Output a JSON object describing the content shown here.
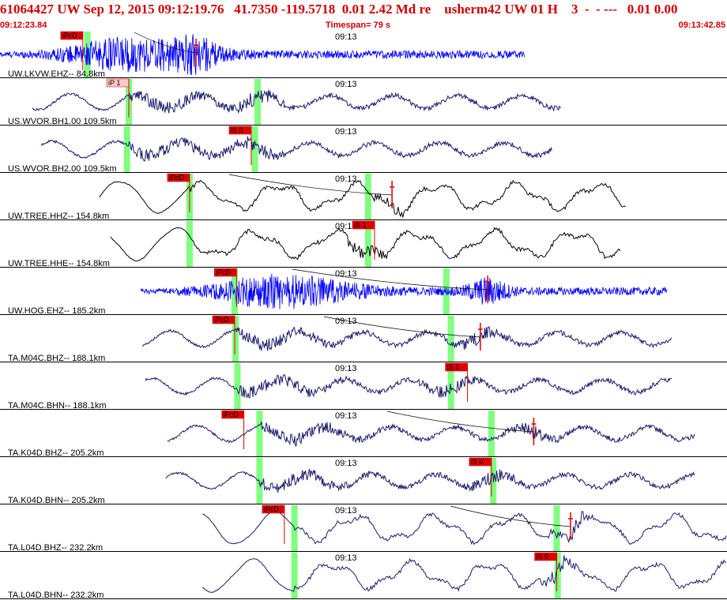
{
  "header": {
    "title": "61064427 UW Sep 12, 2015 09:12:19.76   41.7350 -119.5718  0.01 2.42 Md re    usherm42 UW 01 H    3  -  - ---   0.01 0.00",
    "start_time": "09:12:23.84",
    "timespan": "Timespan=  79 s",
    "end_time": "09:13:42.85"
  },
  "colors": {
    "header_text": "#d00000",
    "trace_blue": "#0000ff",
    "trace_navy": "#1c1c6c",
    "trace_black": "#000000",
    "pick_fill": "#dd0000",
    "pick_fill_light": "#ffc8c8",
    "green_window": "#80ff80",
    "divider": "#000000"
  },
  "chart_data": {
    "type": "seismogram",
    "time_range_s": [
      0,
      79
    ],
    "tick_label": "09:13",
    "traces": [
      {
        "label": "UW.LKVW.EHZ-- 84.8km",
        "color": "blue",
        "style": "noise",
        "data_start_s": 0.0,
        "data_end_s": 57.0,
        "picks": [
          {
            "label": "iPcD",
            "time_s": 9.0
          }
        ],
        "green_s": [
          9.5
        ],
        "theoretical_s": [
          21.3
        ]
      },
      {
        "label": "US.WVOR.BH1.00 109.5km",
        "color": "navy",
        "style": "mixed",
        "data_start_s": 3.5,
        "data_end_s": 61.0,
        "picks": [
          {
            "label": "iP 1",
            "time_s": 14.0,
            "light": true
          }
        ],
        "green_s": [
          14.0,
          28.0
        ],
        "theoretical_s": []
      },
      {
        "label": "US.WVOR.BH2.00 109.5km",
        "color": "navy",
        "style": "mixed",
        "data_start_s": 4.5,
        "data_end_s": 60.0,
        "picks": [
          {
            "label": "iS 0",
            "time_s": 27.3
          }
        ],
        "green_s": [
          13.8,
          27.7
        ],
        "theoretical_s": []
      },
      {
        "label": "UW.TREE.HHZ-- 154.8km",
        "color": "black",
        "style": "wavy",
        "data_start_s": 10.8,
        "data_end_s": 68.0,
        "picks": [
          {
            "label": "iPdD",
            "time_s": 20.6
          }
        ],
        "green_s": [
          20.6,
          40.0
        ],
        "theoretical_s": [
          42.6
        ]
      },
      {
        "label": "UW.TREE.HHE-- 154.8km",
        "color": "black",
        "style": "wavy",
        "data_start_s": 12.0,
        "data_end_s": 67.5,
        "picks": [
          {
            "label": "iS 1",
            "time_s": 40.7
          }
        ],
        "green_s": [
          20.6,
          40.0
        ],
        "theoretical_s": []
      },
      {
        "label": "UW.HOG.EHZ-- 185.2km",
        "color": "blue",
        "style": "noise",
        "data_start_s": 15.3,
        "data_end_s": 72.5,
        "picks": [
          {
            "label": "iPcD",
            "time_s": 25.7
          }
        ],
        "green_s": [
          25.5,
          48.5
        ],
        "theoretical_s": [
          53.0
        ]
      },
      {
        "label": "TA.M04C.BHZ-- 188.1km",
        "color": "navy",
        "style": "mixed",
        "data_start_s": 15.5,
        "data_end_s": 73.0,
        "picks": [
          {
            "label": "iPcD",
            "time_s": 25.5
          }
        ],
        "green_s": [
          25.6,
          49.0
        ],
        "theoretical_s": [
          52.2
        ]
      },
      {
        "label": "TA.M04C.BHN-- 188.1km",
        "color": "navy",
        "style": "mixed",
        "data_start_s": 15.8,
        "data_end_s": 73.0,
        "picks": [
          {
            "label": "iS 1",
            "time_s": 50.8
          }
        ],
        "green_s": [
          25.8,
          49.0
        ],
        "theoretical_s": []
      },
      {
        "label": "TA.K04D.BHZ-- 205.2km",
        "color": "navy",
        "style": "mixed",
        "data_start_s": 18.2,
        "data_end_s": 75.5,
        "picks": [
          {
            "label": "iPcD",
            "time_s": 26.5
          }
        ],
        "green_s": [
          28.2,
          53.4
        ],
        "theoretical_s": [
          58.0
        ]
      },
      {
        "label": "TA.K04D.BHN-- 205.2km",
        "color": "navy",
        "style": "mixed",
        "data_start_s": 18.0,
        "data_end_s": 75.5,
        "picks": [
          {
            "label": "iS 0",
            "time_s": 53.4
          }
        ],
        "green_s": [
          28.2,
          53.6
        ],
        "theoretical_s": []
      },
      {
        "label": "TA.L04D.BHZ-- 232.2km",
        "color": "navy",
        "style": "wavy",
        "data_start_s": 22.0,
        "data_end_s": 79.0,
        "picks": [
          {
            "label": "iPcD",
            "time_s": 30.9
          }
        ],
        "green_s": [
          32.0,
          60.5
        ],
        "theoretical_s": [
          62.0
        ]
      },
      {
        "label": "TA.L04D.BHN-- 232.2km",
        "color": "navy",
        "style": "wavy",
        "data_start_s": 22.0,
        "data_end_s": 79.0,
        "picks": [
          {
            "label": "iS 0",
            "time_s": 60.5
          }
        ],
        "green_s": [
          32.0,
          60.6
        ],
        "theoretical_s": []
      }
    ]
  }
}
